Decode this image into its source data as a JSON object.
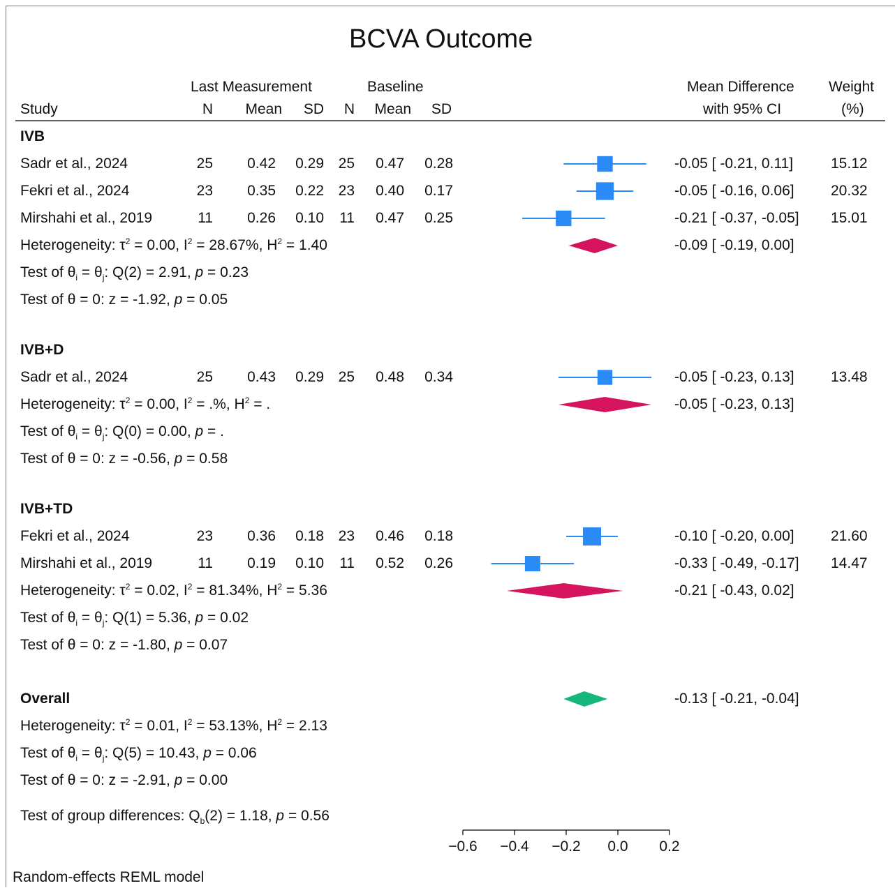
{
  "title": "BCVA Outcome",
  "headers": {
    "study": "Study",
    "group1": "Last Measurement",
    "group2": "Baseline",
    "n": "N",
    "mean": "Mean",
    "sd": "SD",
    "effect_line1": "Mean Difference",
    "effect_line2": "with 95% CI",
    "weight_line1": "Weight",
    "weight_line2": "(%)"
  },
  "footnote": "Random-effects REML model",
  "group_diff_text": {
    "prefix": "Test of group differences: Q",
    "sub": "b",
    "middle": "(2) = 1.18, ",
    "p": "p",
    "suffix": " = 0.56"
  },
  "colors": {
    "study_marker": "#2a8af6",
    "ci_line": "#2a8af6",
    "subgroup_diamond": "#d6145e",
    "overall_diamond": "#15b87a",
    "axis": "#000000"
  },
  "chart_data": {
    "type": "forest",
    "xlabel": "",
    "xlim": [
      -0.6,
      0.2
    ],
    "xticks": [
      -0.6,
      -0.4,
      -0.2,
      0.0,
      0.2
    ],
    "xtick_labels": [
      "−0.6",
      "−0.4",
      "−0.2",
      "0.0",
      "0.2"
    ],
    "groups": [
      {
        "name": "IVB",
        "studies": [
          {
            "study": "Sadr et al., 2024",
            "n1": "25",
            "mean1": "0.42",
            "sd1": "0.29",
            "n2": "25",
            "mean2": "0.47",
            "sd2": "0.28",
            "es": -0.05,
            "lci": -0.21,
            "uci": 0.11,
            "ci_text": "-0.05 [ -0.21,   0.11]",
            "weight": 15.12,
            "weight_text": "15.12"
          },
          {
            "study": "Fekri et al., 2024",
            "n1": "23",
            "mean1": "0.35",
            "sd1": "0.22",
            "n2": "23",
            "mean2": "0.40",
            "sd2": "0.17",
            "es": -0.05,
            "lci": -0.16,
            "uci": 0.06,
            "ci_text": "-0.05 [ -0.16,   0.06]",
            "weight": 20.32,
            "weight_text": "20.32"
          },
          {
            "study": "Mirshahi et al., 2019",
            "n1": "11",
            "mean1": "0.26",
            "sd1": "0.10",
            "n2": "11",
            "mean2": "0.47",
            "sd2": "0.25",
            "es": -0.21,
            "lci": -0.37,
            "uci": -0.05,
            "ci_text": "-0.21 [ -0.37,  -0.05]",
            "weight": 15.01,
            "weight_text": "15.01"
          }
        ],
        "pooled": {
          "es": -0.09,
          "lci": -0.19,
          "uci": 0.0,
          "ci_text": "-0.09 [ -0.19,   0.00]"
        },
        "heterogeneity": {
          "tau2": "0.00",
          "i2": "28.67%",
          "h2": "1.40"
        },
        "q_test": {
          "df": "2",
          "q": "2.91",
          "p": "0.23"
        },
        "z_test": {
          "z": "-1.92",
          "p": "0.05"
        }
      },
      {
        "name": "IVB+D",
        "studies": [
          {
            "study": "Sadr et al., 2024",
            "n1": "25",
            "mean1": "0.43",
            "sd1": "0.29",
            "n2": "25",
            "mean2": "0.48",
            "sd2": "0.34",
            "es": -0.05,
            "lci": -0.23,
            "uci": 0.13,
            "ci_text": "-0.05 [ -0.23,   0.13]",
            "weight": 13.48,
            "weight_text": "13.48"
          }
        ],
        "pooled": {
          "es": -0.05,
          "lci": -0.23,
          "uci": 0.13,
          "ci_text": "-0.05 [ -0.23,   0.13]"
        },
        "heterogeneity": {
          "tau2": "0.00",
          "i2": ".%",
          "h2": "."
        },
        "q_test": {
          "df": "0",
          "q": "0.00",
          "p": "."
        },
        "z_test": {
          "z": "-0.56",
          "p": "0.58"
        }
      },
      {
        "name": "IVB+TD",
        "studies": [
          {
            "study": "Fekri et al., 2024",
            "n1": "23",
            "mean1": "0.36",
            "sd1": "0.18",
            "n2": "23",
            "mean2": "0.46",
            "sd2": "0.18",
            "es": -0.1,
            "lci": -0.2,
            "uci": 0.0,
            "ci_text": "-0.10 [ -0.20,   0.00]",
            "weight": 21.6,
            "weight_text": "21.60"
          },
          {
            "study": "Mirshahi et al., 2019",
            "n1": "11",
            "mean1": "0.19",
            "sd1": "0.10",
            "n2": "11",
            "mean2": "0.52",
            "sd2": "0.26",
            "es": -0.33,
            "lci": -0.49,
            "uci": -0.17,
            "ci_text": "-0.33 [ -0.49,  -0.17]",
            "weight": 14.47,
            "weight_text": "14.47"
          }
        ],
        "pooled": {
          "es": -0.21,
          "lci": -0.43,
          "uci": 0.02,
          "ci_text": "-0.21 [ -0.43,   0.02]"
        },
        "heterogeneity": {
          "tau2": "0.02",
          "i2": "81.34%",
          "h2": "5.36"
        },
        "q_test": {
          "df": "1",
          "q": "5.36",
          "p": "0.02"
        },
        "z_test": {
          "z": "-1.80",
          "p": "0.07"
        }
      }
    ],
    "overall": {
      "name": "Overall",
      "es": -0.13,
      "lci": -0.21,
      "uci": -0.04,
      "ci_text": "-0.13 [ -0.21,  -0.04]",
      "heterogeneity": {
        "tau2": "0.01",
        "i2": "53.13%",
        "h2": "2.13"
      },
      "q_test": {
        "df": "5",
        "q": "10.43",
        "p": "0.06"
      },
      "z_test": {
        "z": "-2.91",
        "p": "0.00"
      }
    },
    "group_difference": {
      "df": "2",
      "qb": "1.18",
      "p": "0.56"
    }
  }
}
